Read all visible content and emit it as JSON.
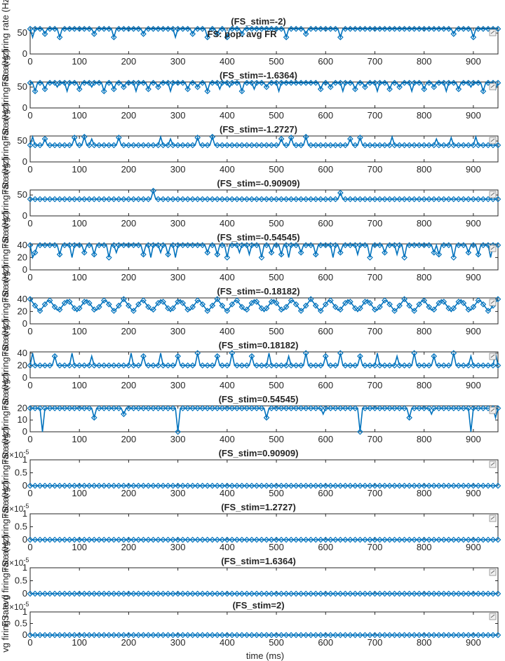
{
  "figure": {
    "suptitle": "FS: pop. avg FR",
    "xlabel": "time (ms)",
    "ylabel_first": "vg firing rate (l",
    "ylabel_repeat": "FS: avg firing rate (Hz)",
    "colors": {
      "series": "#0072BD",
      "axes": "#262626",
      "background": "#ffffff"
    },
    "icon": "brush-icon"
  },
  "chart_data": [
    {
      "type": "line",
      "title": "(FS_stim=-2)",
      "xlabel": "",
      "ylabel": "",
      "xlim": [
        0,
        950
      ],
      "ylim": [
        0,
        62
      ],
      "x_ticks": [
        0,
        100,
        200,
        300,
        400,
        500,
        600,
        700,
        800,
        900
      ],
      "y_ticks": [
        0,
        50
      ],
      "tick_labels_y": [
        "0",
        "50"
      ],
      "show_x_tick_labels": true,
      "base": 60,
      "low_values": [
        40,
        48
      ],
      "dips": [
        5,
        28,
        62,
        130,
        168,
        228,
        295,
        328,
        358,
        382,
        402,
        428,
        522,
        560,
        632,
        862,
        900
      ],
      "marker": "diamond"
    },
    {
      "type": "line",
      "title": "(FS_stim=-1.6364)",
      "xlabel": "",
      "ylabel": "",
      "xlim": [
        0,
        950
      ],
      "ylim": [
        0,
        62
      ],
      "x_ticks": [
        0,
        100,
        200,
        300,
        400,
        500,
        600,
        700,
        800,
        900
      ],
      "y_ticks": [
        0,
        50
      ],
      "tick_labels_y": [
        "0",
        "50"
      ],
      "show_x_tick_labels": true,
      "base": 60,
      "low_values": [
        40,
        45,
        50
      ],
      "dips": [
        10,
        32,
        55,
        75,
        102,
        125,
        148,
        170,
        192,
        215,
        238,
        262,
        285,
        318,
        340,
        362,
        385,
        405,
        430,
        455,
        478,
        505,
        590,
        612,
        635,
        660,
        680,
        705,
        728,
        750,
        775,
        798,
        822,
        845,
        870,
        893,
        918,
        945
      ],
      "marker": "diamond"
    },
    {
      "type": "line",
      "title": "(FS_stim=-1.2727)",
      "xlabel": "",
      "ylabel": "",
      "xlim": [
        0,
        950
      ],
      "ylim": [
        0,
        62
      ],
      "x_ticks": [
        0,
        100,
        200,
        300,
        400,
        500,
        600,
        700,
        800,
        900
      ],
      "y_ticks": [
        0,
        50
      ],
      "tick_labels_y": [
        "0",
        "50"
      ],
      "show_x_tick_labels": true,
      "base": 40,
      "high_values": [
        60,
        55,
        58
      ],
      "peaks": [
        5,
        30,
        92,
        112,
        125,
        180,
        265,
        285,
        340,
        372,
        510,
        532,
        560,
        650,
        668,
        735,
        825,
        855,
        905
      ],
      "marker": "diamond"
    },
    {
      "type": "line",
      "title": "(FS_stim=-0.90909)",
      "xlabel": "",
      "ylabel": "",
      "xlim": [
        0,
        950
      ],
      "ylim": [
        0,
        62
      ],
      "x_ticks": [
        0,
        100,
        200,
        300,
        400,
        500,
        600,
        700,
        800,
        900
      ],
      "y_ticks": [
        0,
        50
      ],
      "tick_labels_y": [
        "0",
        "50"
      ],
      "show_x_tick_labels": true,
      "base": 40,
      "high_values": [
        60,
        55
      ],
      "peaks": [
        252,
        628
      ],
      "marker": "diamond"
    },
    {
      "type": "line",
      "title": "(FS_stim=-0.54545)",
      "xlabel": "",
      "ylabel": "",
      "xlim": [
        0,
        950
      ],
      "ylim": [
        0,
        42
      ],
      "x_ticks": [
        0,
        100,
        200,
        300,
        400,
        500,
        600,
        700,
        800,
        900
      ],
      "y_ticks": [
        0,
        20,
        40
      ],
      "tick_labels_y": [
        "0",
        "20",
        "40"
      ],
      "show_x_tick_labels": true,
      "base": 40,
      "low_values": [
        20,
        28,
        25
      ],
      "dips": [
        5,
        12,
        60,
        85,
        112,
        130,
        160,
        175,
        228,
        245,
        265,
        280,
        295,
        360,
        378,
        400,
        425,
        445,
        470,
        490,
        510,
        525,
        550,
        582,
        615,
        628,
        665,
        688,
        720,
        745,
        760,
        818,
        832,
        860,
        890,
        908,
        935
      ],
      "marker": "diamond"
    },
    {
      "type": "line",
      "title": "(FS_stim=-0.18182)",
      "xlabel": "",
      "ylabel": "",
      "xlim": [
        0,
        950
      ],
      "ylim": [
        0,
        42
      ],
      "x_ticks": [
        0,
        100,
        200,
        300,
        400,
        500,
        600,
        700,
        800,
        900
      ],
      "y_ticks": [
        0,
        20,
        40
      ],
      "tick_labels_y": [
        "0",
        "20",
        "40"
      ],
      "show_x_tick_labels": true,
      "period": 38,
      "phase": 0,
      "amp_low": 20,
      "amp_high": 40,
      "marker": "diamond"
    },
    {
      "type": "line",
      "title": "(FS_stim=0.18182)",
      "xlabel": "",
      "ylabel": "",
      "xlim": [
        0,
        950
      ],
      "ylim": [
        0,
        42
      ],
      "x_ticks": [
        0,
        100,
        200,
        300,
        400,
        500,
        600,
        700,
        800,
        900
      ],
      "y_ticks": [
        0,
        20,
        40
      ],
      "tick_labels_y": [
        "0",
        "20",
        "40"
      ],
      "show_x_tick_labels": true,
      "base": 20,
      "high_values": [
        40,
        35
      ],
      "peaks": [
        5,
        50,
        85,
        125,
        205,
        230,
        265,
        300,
        340,
        378,
        410,
        450,
        485,
        525,
        558,
        598,
        632,
        668,
        705,
        745,
        778,
        820,
        858,
        895,
        945
      ],
      "marker": "diamond"
    },
    {
      "type": "line",
      "title": "(FS_stim=0.54545)",
      "xlabel": "",
      "ylabel": "",
      "xlim": [
        0,
        950
      ],
      "ylim": [
        0,
        22
      ],
      "x_ticks": [
        0,
        100,
        200,
        300,
        400,
        500,
        600,
        700,
        800,
        900
      ],
      "y_ticks": [
        0,
        10,
        20
      ],
      "tick_labels_y": [
        "0",
        "10",
        "20"
      ],
      "show_x_tick_labels": true,
      "base": 20,
      "low_values": [
        0,
        12,
        15
      ],
      "dips": [
        25,
        132,
        192,
        300,
        480,
        595,
        670,
        770,
        815,
        895,
        945
      ],
      "marker": "diamond"
    },
    {
      "type": "line",
      "title": "(FS_stim=0.90909)",
      "xlabel": "",
      "ylabel": "",
      "xlim": [
        0,
        950
      ],
      "ylim": [
        0,
        1
      ],
      "x_ticks": [
        0,
        100,
        200,
        300,
        400,
        500,
        600,
        700,
        800,
        900
      ],
      "y_ticks": [
        0,
        0.5,
        1
      ],
      "tick_labels_y": [
        "0",
        "0.5",
        "1"
      ],
      "y_exponent": [
        "10",
        "-5"
      ],
      "show_x_tick_labels": true,
      "base": 0,
      "marker": "diamond"
    },
    {
      "type": "line",
      "title": "(FS_stim=1.2727)",
      "xlabel": "",
      "ylabel": "",
      "xlim": [
        0,
        950
      ],
      "ylim": [
        0,
        1
      ],
      "x_ticks": [
        0,
        100,
        200,
        300,
        400,
        500,
        600,
        700,
        800,
        900
      ],
      "y_ticks": [
        0,
        0.5,
        1
      ],
      "tick_labels_y": [
        "0",
        "0.5",
        "1"
      ],
      "y_exponent": [
        "10",
        "-5"
      ],
      "show_x_tick_labels": true,
      "base": 0,
      "marker": "diamond"
    },
    {
      "type": "line",
      "title": "(FS_stim=1.6364)",
      "xlabel": "",
      "ylabel": "",
      "xlim": [
        0,
        950
      ],
      "ylim": [
        0,
        1
      ],
      "x_ticks": [
        0,
        100,
        200,
        300,
        400,
        500,
        600,
        700,
        800,
        900
      ],
      "y_ticks": [
        0,
        0.5,
        1
      ],
      "tick_labels_y": [
        "0",
        "0.5",
        "1"
      ],
      "y_exponent": [
        "10",
        "-5"
      ],
      "show_x_tick_labels": false,
      "base": 0,
      "marker": "diamond"
    },
    {
      "type": "line",
      "title": "(FS_stim=2)",
      "xlabel": "time (ms)",
      "ylabel": "",
      "xlim": [
        0,
        950
      ],
      "ylim": [
        0,
        1
      ],
      "x_ticks": [
        0,
        100,
        200,
        300,
        400,
        500,
        600,
        700,
        800,
        900
      ],
      "y_ticks": [
        0,
        0.5,
        1
      ],
      "tick_labels_y": [
        "0",
        "0.5",
        "1"
      ],
      "y_exponent": [
        "10",
        "-5"
      ],
      "show_x_tick_labels": true,
      "base": 0,
      "marker": "diamond"
    }
  ]
}
